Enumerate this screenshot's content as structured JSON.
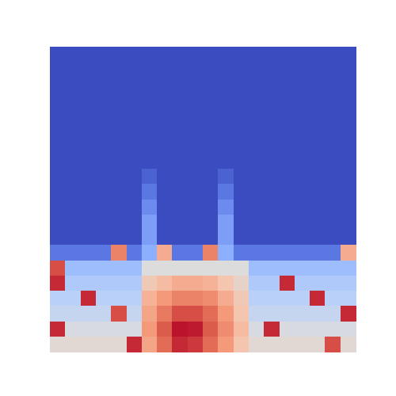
{
  "chart_data": {
    "type": "heatmap",
    "zlim": [
      0,
      1
    ],
    "tick_labels": false,
    "cells": [
      [
        0,
        0,
        0,
        0,
        0,
        0,
        0,
        0,
        0,
        0,
        0,
        0,
        0,
        0,
        0,
        0,
        0,
        0,
        0,
        0
      ],
      [
        0,
        0,
        0,
        0,
        0,
        0,
        0,
        0,
        0,
        0,
        0,
        0,
        0,
        0,
        0,
        0,
        0,
        0,
        0,
        0
      ],
      [
        0,
        0,
        0,
        0,
        0,
        0,
        0,
        0,
        0,
        0,
        0,
        0,
        0,
        0,
        0,
        0,
        0,
        0,
        0,
        0
      ],
      [
        0,
        0,
        0,
        0,
        0,
        0,
        0,
        0,
        0,
        0,
        0,
        0,
        0,
        0,
        0,
        0,
        0,
        0,
        0,
        0
      ],
      [
        0,
        0,
        0,
        0,
        0,
        0,
        0,
        0,
        0,
        0,
        0,
        0,
        0,
        0,
        0,
        0,
        0,
        0,
        0,
        0
      ],
      [
        0,
        0,
        0,
        0,
        0,
        0,
        0,
        0,
        0,
        0,
        0,
        0,
        0,
        0,
        0,
        0,
        0,
        0,
        0,
        0
      ],
      [
        0,
        0,
        0,
        0,
        0,
        0,
        0,
        0,
        0,
        0,
        0,
        0,
        0,
        0,
        0,
        0,
        0,
        0,
        0,
        0
      ],
      [
        0,
        0,
        0,
        0,
        0,
        0,
        0,
        0,
        0,
        0,
        0,
        0,
        0,
        0,
        0,
        0,
        0,
        0,
        0,
        0
      ],
      [
        0,
        0,
        0,
        0,
        0,
        0,
        0.05,
        0,
        0,
        0,
        0,
        0.05,
        0,
        0,
        0,
        0,
        0,
        0,
        0,
        0
      ],
      [
        0,
        0,
        0,
        0,
        0,
        0,
        0.1,
        0,
        0,
        0,
        0,
        0.1,
        0,
        0,
        0,
        0,
        0,
        0,
        0,
        0
      ],
      [
        0,
        0,
        0,
        0,
        0,
        0,
        0.15,
        0,
        0,
        0,
        0,
        0.15,
        0,
        0,
        0,
        0,
        0,
        0,
        0,
        0
      ],
      [
        0,
        0,
        0,
        0,
        0,
        0,
        0.2,
        0,
        0,
        0,
        0,
        0.2,
        0,
        0,
        0,
        0,
        0,
        0,
        0,
        0
      ],
      [
        0,
        0,
        0,
        0,
        0,
        0,
        0.2,
        0,
        0,
        0,
        0,
        0.2,
        0,
        0,
        0,
        0,
        0,
        0,
        0,
        0
      ],
      [
        0.1,
        0.1,
        0.1,
        0.1,
        0.8,
        0.1,
        0.25,
        0.7,
        0.1,
        0.1,
        0.8,
        0.25,
        0.1,
        0.1,
        0.1,
        0.1,
        0.1,
        0.1,
        0.1,
        0.7
      ],
      [
        0.9,
        0.3,
        0.3,
        0.3,
        0.3,
        0.3,
        0.5,
        0.5,
        0.5,
        0.5,
        0.5,
        0.5,
        0.5,
        0.3,
        0.3,
        0.3,
        0.3,
        0.3,
        0.3,
        0.3
      ],
      [
        0.95,
        0.35,
        0.35,
        0.35,
        0.35,
        0.35,
        0.6,
        0.65,
        0.7,
        0.7,
        0.68,
        0.62,
        0.55,
        0.35,
        0.35,
        0.95,
        0.35,
        0.35,
        0.35,
        0.35
      ],
      [
        0.38,
        0.38,
        0.95,
        0.38,
        0.38,
        0.38,
        0.68,
        0.75,
        0.8,
        0.8,
        0.78,
        0.7,
        0.6,
        0.38,
        0.38,
        0.38,
        0.38,
        0.95,
        0.38,
        0.38
      ],
      [
        0.42,
        0.42,
        0.42,
        0.42,
        0.9,
        0.42,
        0.72,
        0.82,
        0.9,
        0.9,
        0.85,
        0.75,
        0.62,
        0.42,
        0.42,
        0.42,
        0.42,
        0.42,
        0.42,
        0.95
      ],
      [
        0.95,
        0.48,
        0.48,
        0.48,
        0.48,
        0.48,
        0.75,
        0.88,
        0.98,
        0.97,
        0.88,
        0.78,
        0.65,
        0.48,
        0.95,
        0.48,
        0.48,
        0.48,
        0.48,
        0.48
      ],
      [
        0.52,
        0.52,
        0.52,
        0.52,
        0.52,
        0.95,
        0.72,
        0.85,
        0.95,
        0.93,
        0.85,
        0.75,
        0.62,
        0.52,
        0.52,
        0.52,
        0.52,
        0.52,
        0.9,
        0.52
      ]
    ]
  }
}
